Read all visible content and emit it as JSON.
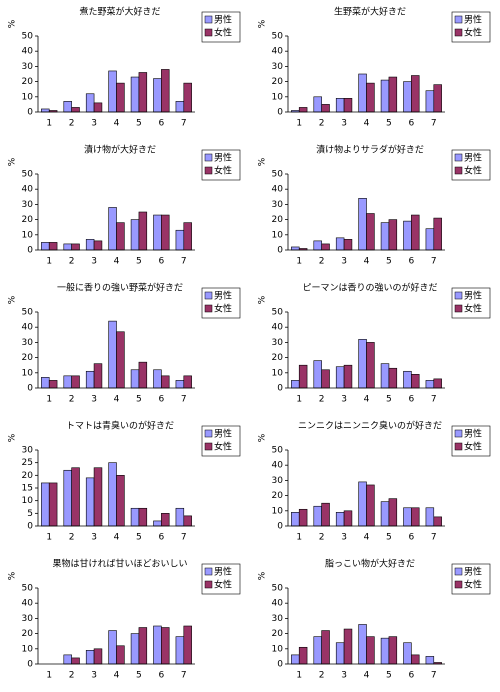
{
  "chart_data": [
    {
      "type": "bar",
      "title": "煮た野菜が大好きだ",
      "y_label": "%",
      "categories": [
        "1",
        "2",
        "3",
        "4",
        "5",
        "6",
        "7"
      ],
      "ylim": [
        0,
        50
      ],
      "yticks": [
        0,
        10,
        20,
        30,
        40,
        50
      ],
      "series": [
        {
          "name": "男性",
          "color": "#9999ff",
          "values": [
            2,
            7,
            12,
            27,
            23,
            22,
            7
          ]
        },
        {
          "name": "女性",
          "color": "#993366",
          "values": [
            1,
            3,
            6,
            19,
            26,
            28,
            19
          ]
        }
      ]
    },
    {
      "type": "bar",
      "title": "生野菜が大好きだ",
      "y_label": "%",
      "categories": [
        "1",
        "2",
        "3",
        "4",
        "5",
        "6",
        "7"
      ],
      "ylim": [
        0,
        50
      ],
      "yticks": [
        0,
        10,
        20,
        30,
        40,
        50
      ],
      "series": [
        {
          "name": "男性",
          "color": "#9999ff",
          "values": [
            1,
            10,
            9,
            25,
            21,
            20,
            14
          ]
        },
        {
          "name": "女性",
          "color": "#993366",
          "values": [
            3,
            5,
            9,
            19,
            23,
            24,
            18
          ]
        }
      ]
    },
    {
      "type": "bar",
      "title": "漬け物が大好きだ",
      "y_label": "%",
      "categories": [
        "1",
        "2",
        "3",
        "4",
        "5",
        "6",
        "7"
      ],
      "ylim": [
        0,
        50
      ],
      "yticks": [
        0,
        10,
        20,
        30,
        40,
        50
      ],
      "series": [
        {
          "name": "男性",
          "color": "#9999ff",
          "values": [
            5,
            4,
            7,
            28,
            20,
            23,
            13
          ]
        },
        {
          "name": "女性",
          "color": "#993366",
          "values": [
            5,
            4,
            6,
            18,
            25,
            23,
            18
          ]
        }
      ]
    },
    {
      "type": "bar",
      "title": "漬け物よりサラダが好きだ",
      "y_label": "%",
      "categories": [
        "1",
        "2",
        "3",
        "4",
        "5",
        "6",
        "7"
      ],
      "ylim": [
        0,
        50
      ],
      "yticks": [
        0,
        10,
        20,
        30,
        40,
        50
      ],
      "series": [
        {
          "name": "男性",
          "color": "#9999ff",
          "values": [
            2,
            6,
            8,
            34,
            18,
            19,
            14
          ]
        },
        {
          "name": "女性",
          "color": "#993366",
          "values": [
            1,
            4,
            7,
            24,
            20,
            23,
            21
          ]
        }
      ]
    },
    {
      "type": "bar",
      "title": "一般に香りの強い野菜が好きだ",
      "y_label": "%",
      "categories": [
        "1",
        "2",
        "3",
        "4",
        "5",
        "6",
        "7"
      ],
      "ylim": [
        0,
        50
      ],
      "yticks": [
        0,
        10,
        20,
        30,
        40,
        50
      ],
      "series": [
        {
          "name": "男性",
          "color": "#9999ff",
          "values": [
            7,
            8,
            11,
            44,
            12,
            12,
            5
          ]
        },
        {
          "name": "女性",
          "color": "#993366",
          "values": [
            5,
            8,
            16,
            37,
            17,
            8,
            8
          ]
        }
      ]
    },
    {
      "type": "bar",
      "title": "ピーマンは香りの強いのが好きだ",
      "y_label": "%",
      "categories": [
        "1",
        "2",
        "3",
        "4",
        "5",
        "6",
        "7"
      ],
      "ylim": [
        0,
        50
      ],
      "yticks": [
        0,
        10,
        20,
        30,
        40,
        50
      ],
      "series": [
        {
          "name": "男性",
          "color": "#9999ff",
          "values": [
            5,
            18,
            14,
            32,
            16,
            11,
            5
          ]
        },
        {
          "name": "女性",
          "color": "#993366",
          "values": [
            15,
            12,
            15,
            30,
            13,
            9,
            6
          ]
        }
      ]
    },
    {
      "type": "bar",
      "title": "トマトは青臭いのが好きだ",
      "y_label": "%",
      "categories": [
        "1",
        "2",
        "3",
        "4",
        "5",
        "6",
        "7"
      ],
      "ylim": [
        0,
        30
      ],
      "yticks": [
        0,
        5,
        10,
        15,
        20,
        25,
        30
      ],
      "series": [
        {
          "name": "男性",
          "color": "#9999ff",
          "values": [
            17,
            22,
            19,
            25,
            7,
            2,
            7
          ]
        },
        {
          "name": "女性",
          "color": "#993366",
          "values": [
            17,
            23,
            23,
            20,
            7,
            5,
            4
          ]
        }
      ]
    },
    {
      "type": "bar",
      "title": "ニンニクはニンニク臭いのが好きだ",
      "y_label": "%",
      "categories": [
        "1",
        "2",
        "3",
        "4",
        "5",
        "6",
        "7"
      ],
      "ylim": [
        0,
        50
      ],
      "yticks": [
        0,
        10,
        20,
        30,
        40,
        50
      ],
      "series": [
        {
          "name": "男性",
          "color": "#9999ff",
          "values": [
            9,
            13,
            9,
            29,
            16,
            12,
            12
          ]
        },
        {
          "name": "女性",
          "color": "#993366",
          "values": [
            11,
            15,
            10,
            27,
            18,
            12,
            6
          ]
        }
      ]
    },
    {
      "type": "bar",
      "title": "果物は甘ければ甘いほどおいしい",
      "y_label": "%",
      "categories": [
        "1",
        "2",
        "3",
        "4",
        "5",
        "6",
        "7"
      ],
      "ylim": [
        0,
        50
      ],
      "yticks": [
        0,
        10,
        20,
        30,
        40,
        50
      ],
      "series": [
        {
          "name": "男性",
          "color": "#9999ff",
          "values": [
            0,
            6,
            9,
            22,
            20,
            25,
            18
          ]
        },
        {
          "name": "女性",
          "color": "#993366",
          "values": [
            0,
            4,
            10,
            12,
            24,
            24,
            25
          ]
        }
      ]
    },
    {
      "type": "bar",
      "title": "脂っこい物が大好きだ",
      "y_label": "%",
      "categories": [
        "1",
        "2",
        "3",
        "4",
        "5",
        "6",
        "7"
      ],
      "ylim": [
        0,
        50
      ],
      "yticks": [
        0,
        10,
        20,
        30,
        40,
        50
      ],
      "series": [
        {
          "name": "男性",
          "color": "#9999ff",
          "values": [
            6,
            18,
            14,
            26,
            17,
            14,
            5
          ]
        },
        {
          "name": "女性",
          "color": "#993366",
          "values": [
            11,
            22,
            23,
            18,
            18,
            6,
            1
          ]
        }
      ]
    }
  ]
}
